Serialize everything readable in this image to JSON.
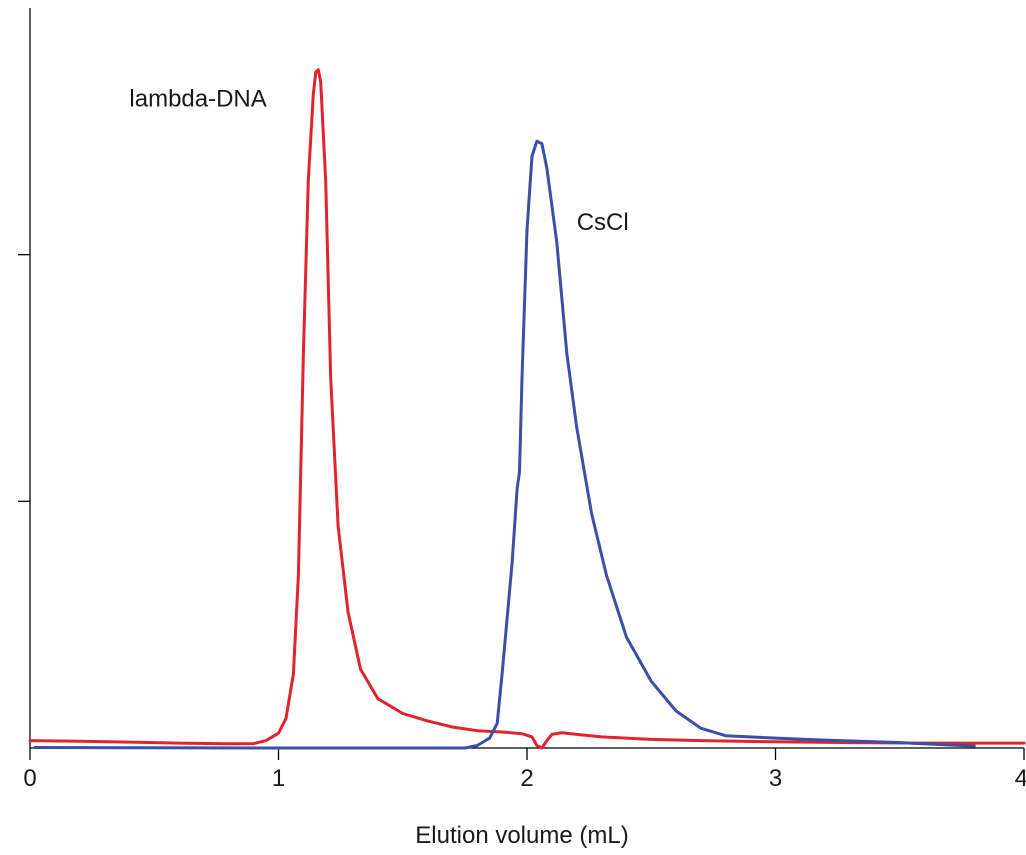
{
  "chart_data": {
    "type": "line",
    "title": "",
    "xlabel": "Elution volume (mL)",
    "ylabel": "",
    "xlim": [
      0,
      4
    ],
    "ylim": [
      0,
      3
    ],
    "x_ticks": [
      0,
      1,
      2,
      3,
      4
    ],
    "x_tick_labels": [
      "0",
      "1",
      "2",
      "3",
      "4"
    ],
    "y_ticks": [
      1,
      2
    ],
    "y_tick_labels": [
      "",
      ""
    ],
    "grid": false,
    "legend": "none",
    "annotations": [
      {
        "text": "lambda-DNA",
        "x": 0.4,
        "y": 2.6
      },
      {
        "text": "CsCl",
        "x": 2.2,
        "y": 2.1
      }
    ],
    "series": [
      {
        "color": "#e0242e",
        "points": [
          [
            0.0,
            0.03
          ],
          [
            0.2,
            0.027
          ],
          [
            0.4,
            0.024
          ],
          [
            0.6,
            0.02
          ],
          [
            0.8,
            0.017
          ],
          [
            0.9,
            0.018
          ],
          [
            0.95,
            0.03
          ],
          [
            1.0,
            0.06
          ],
          [
            1.03,
            0.12
          ],
          [
            1.06,
            0.3
          ],
          [
            1.08,
            0.7
          ],
          [
            1.1,
            1.6
          ],
          [
            1.12,
            2.3
          ],
          [
            1.14,
            2.65
          ],
          [
            1.15,
            2.74
          ],
          [
            1.16,
            2.75
          ],
          [
            1.17,
            2.7
          ],
          [
            1.19,
            2.3
          ],
          [
            1.21,
            1.5
          ],
          [
            1.24,
            0.9
          ],
          [
            1.28,
            0.55
          ],
          [
            1.33,
            0.32
          ],
          [
            1.4,
            0.2
          ],
          [
            1.5,
            0.14
          ],
          [
            1.6,
            0.11
          ],
          [
            1.7,
            0.085
          ],
          [
            1.8,
            0.07
          ],
          [
            1.9,
            0.065
          ],
          [
            1.98,
            0.058
          ],
          [
            2.02,
            0.045
          ],
          [
            2.04,
            0.01
          ],
          [
            2.06,
            0.0
          ],
          [
            2.08,
            0.03
          ],
          [
            2.1,
            0.055
          ],
          [
            2.14,
            0.062
          ],
          [
            2.2,
            0.055
          ],
          [
            2.3,
            0.045
          ],
          [
            2.5,
            0.035
          ],
          [
            2.7,
            0.03
          ],
          [
            3.0,
            0.025
          ],
          [
            3.3,
            0.022
          ],
          [
            3.6,
            0.02
          ],
          [
            3.8,
            0.02
          ],
          [
            4.0,
            0.02
          ]
        ]
      },
      {
        "color": "#3b4fa8",
        "points": [
          [
            0.02,
            0.002
          ],
          [
            0.5,
            0.001
          ],
          [
            1.0,
            0.0
          ],
          [
            1.5,
            0.0
          ],
          [
            1.75,
            0.0
          ],
          [
            1.8,
            0.01
          ],
          [
            1.85,
            0.04
          ],
          [
            1.88,
            0.1
          ],
          [
            1.9,
            0.3
          ],
          [
            1.94,
            0.75
          ],
          [
            1.96,
            1.05
          ],
          [
            1.97,
            1.12
          ],
          [
            1.98,
            1.5
          ],
          [
            2.0,
            2.1
          ],
          [
            2.02,
            2.4
          ],
          [
            2.04,
            2.46
          ],
          [
            2.06,
            2.45
          ],
          [
            2.08,
            2.35
          ],
          [
            2.12,
            2.05
          ],
          [
            2.16,
            1.6
          ],
          [
            2.2,
            1.3
          ],
          [
            2.26,
            0.95
          ],
          [
            2.32,
            0.7
          ],
          [
            2.4,
            0.45
          ],
          [
            2.5,
            0.27
          ],
          [
            2.6,
            0.15
          ],
          [
            2.7,
            0.08
          ],
          [
            2.8,
            0.05
          ],
          [
            3.0,
            0.04
          ],
          [
            3.2,
            0.032
          ],
          [
            3.5,
            0.022
          ],
          [
            3.7,
            0.012
          ],
          [
            3.8,
            0.008
          ]
        ]
      }
    ]
  }
}
